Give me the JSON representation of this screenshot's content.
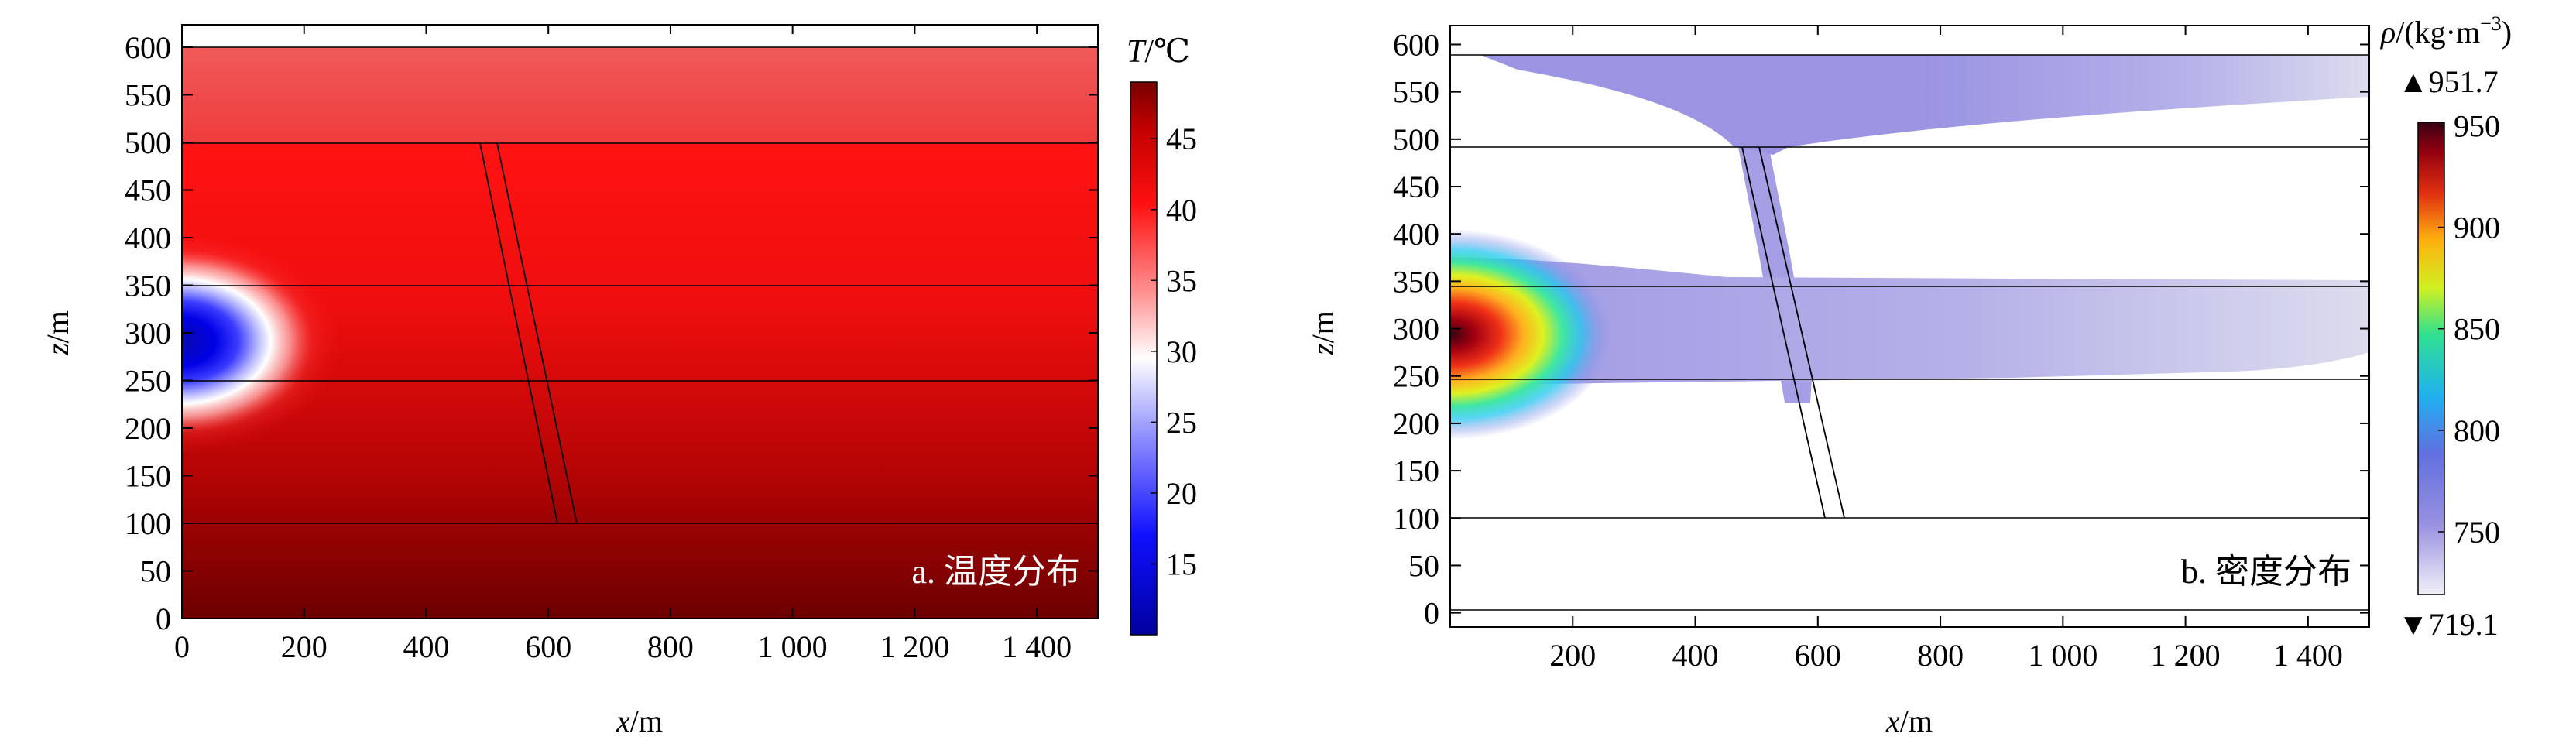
{
  "chart_data": [
    {
      "type": "heatmap",
      "panel_label": "a. 温度分布",
      "xlabel": "x/m",
      "ylabel": "z/m",
      "xlim": [
        0,
        1500
      ],
      "ylim": [
        0,
        600
      ],
      "x_ticks": [
        0,
        200,
        400,
        600,
        800,
        1000,
        1200,
        1400
      ],
      "x_tick_labels": [
        "0",
        "200",
        "400",
        "600",
        "800",
        "1 000",
        "1 200",
        "1 400"
      ],
      "y_ticks": [
        0,
        50,
        100,
        150,
        200,
        250,
        300,
        350,
        400,
        450,
        500,
        550,
        600
      ],
      "y_tick_labels": [
        "0",
        "50",
        "100",
        "150",
        "200",
        "250",
        "300",
        "350",
        "400",
        "450",
        "500",
        "550",
        "600"
      ],
      "layer_boundaries_z": [
        0,
        100,
        250,
        350,
        500,
        600
      ],
      "fault": {
        "top_x": [
          490,
          520
        ],
        "top_z": 500,
        "bottom_x": [
          610,
          640
        ],
        "bottom_z": 100
      },
      "plume": {
        "center_x": 0,
        "center_z": 295,
        "min_value": 11,
        "reach_x": 160
      },
      "colorbar": {
        "title": "T/℃",
        "range": [
          10,
          49
        ],
        "ticks": [
          15,
          20,
          25,
          30,
          35,
          40,
          45
        ],
        "tick_labels": [
          "15",
          "20",
          "25",
          "30",
          "35",
          "40",
          "45"
        ],
        "colormap": [
          "#0000c8",
          "#3a3aff",
          "#ffffff",
          "#ff1010",
          "#780000"
        ]
      },
      "colors": {
        "deep": "#6e0000",
        "mid": "#ff1414",
        "top": "#ef5050"
      }
    },
    {
      "type": "heatmap",
      "panel_label": "b. 密度分布",
      "xlabel": "x/m",
      "ylabel": "z/m",
      "xlim": [
        0,
        1500
      ],
      "ylim": [
        -15,
        620
      ],
      "x_ticks": [
        200,
        400,
        600,
        800,
        1000,
        1200,
        1400
      ],
      "x_tick_labels": [
        "200",
        "400",
        "600",
        "800",
        "1 000",
        "1 200",
        "1 400"
      ],
      "y_ticks": [
        0,
        50,
        100,
        150,
        200,
        250,
        300,
        350,
        400,
        450,
        500,
        550,
        600
      ],
      "y_tick_labels": [
        "0",
        "50",
        "100",
        "150",
        "200",
        "250",
        "300",
        "350",
        "400",
        "450",
        "500",
        "550",
        "600"
      ],
      "layer_boundaries_z": [
        0,
        100,
        250,
        350,
        500,
        600
      ],
      "fault": {
        "top_x": [
          490,
          520
        ],
        "top_z": 500,
        "bottom_x": [
          610,
          640
        ],
        "bottom_z": 100
      },
      "plume": {
        "center_x": 0,
        "center_z": 290,
        "max_value": 950,
        "reach_x": 210
      },
      "colorbar": {
        "title": "ρ/(kg·m⁻³)",
        "range": [
          719.1,
          951.7
        ],
        "max_label": "▲951.7",
        "min_label": "▼719.1",
        "ticks": [
          750,
          800,
          850,
          900,
          950
        ],
        "tick_labels": [
          "750",
          "800",
          "850",
          "900",
          "950"
        ],
        "colormap": [
          "#ececf6",
          "#8a86e0",
          "#20b8f0",
          "#30e080",
          "#f0e020",
          "#e02010",
          "#3a0010"
        ]
      },
      "colors": {
        "fill": "#9a94e2",
        "fill_light": "#d8d6ee"
      }
    }
  ]
}
